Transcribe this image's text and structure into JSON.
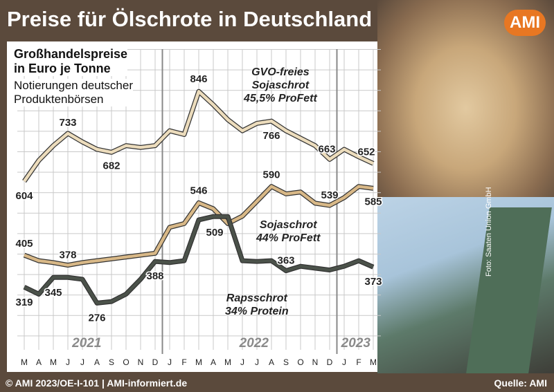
{
  "chart_data": {
    "type": "line",
    "title": "Preise für Ölschrote in Deutschland",
    "logo": "AMI",
    "subtitle": "Großhandelspreise\nin Euro je Tonne",
    "note": "Notierungen deutscher\nProduktenbörsen",
    "categories": [
      "M",
      "A",
      "M",
      "J",
      "J",
      "A",
      "S",
      "O",
      "N",
      "D",
      "J",
      "F",
      "M",
      "A",
      "M",
      "J",
      "J",
      "A",
      "S",
      "O",
      "N",
      "D",
      "J",
      "F",
      "M"
    ],
    "years": [
      "2021",
      "2022",
      "2023"
    ],
    "ylim": [
      150,
      960
    ],
    "grid": true,
    "series": [
      {
        "name": "GVO-freies\nSojaschrot\n45,5% ProFett",
        "color": "#ecdcbc",
        "values": [
          604,
          660,
          700,
          733,
          710,
          690,
          682,
          700,
          695,
          700,
          740,
          730,
          846,
          810,
          770,
          740,
          760,
          766,
          740,
          720,
          700,
          663,
          690,
          670,
          652
        ]
      },
      {
        "name": "Sojaschrot\n44% ProFett",
        "color": "#d8b887",
        "values": [
          405,
          390,
          385,
          378,
          385,
          390,
          395,
          400,
          405,
          410,
          480,
          490,
          546,
          530,
          490,
          510,
          550,
          590,
          570,
          575,
          545,
          539,
          560,
          590,
          585
        ]
      },
      {
        "name": "Rapsschrot\n34% Protein",
        "color": "#4b524a",
        "values": [
          319,
          300,
          345,
          345,
          340,
          276,
          280,
          300,
          340,
          388,
          385,
          390,
          500,
          509,
          509,
          390,
          388,
          390,
          363,
          375,
          370,
          365,
          375,
          390,
          373
        ]
      }
    ],
    "footer": "© AMI 2023/OE-I-101 | AMI-informiert.de",
    "source": "Quelle: AMI",
    "photo_credit": "Foto: Saaten Union GmbH"
  }
}
